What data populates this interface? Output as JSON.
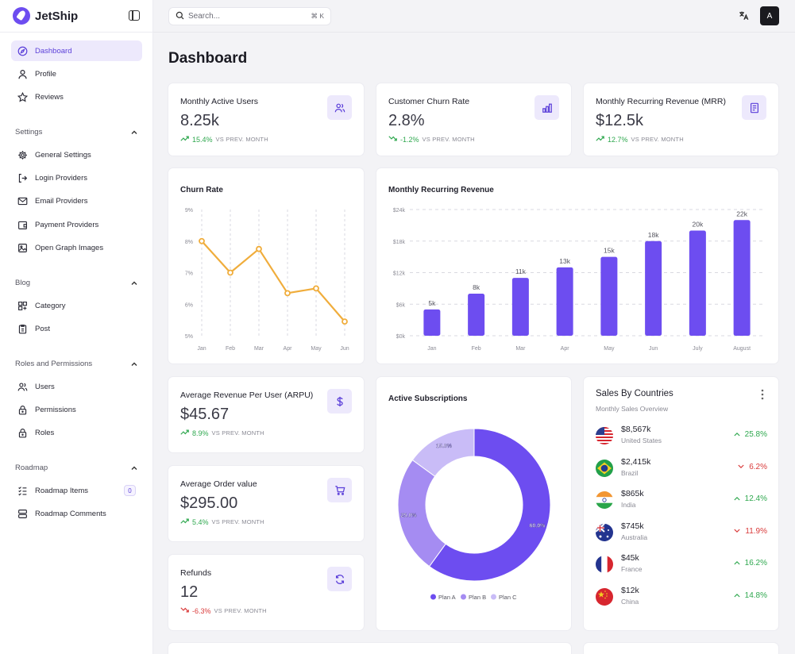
{
  "brand": {
    "name": "JetShip"
  },
  "nav": {
    "main": [
      {
        "label": "Dashboard",
        "icon": "compass-icon",
        "active": true
      },
      {
        "label": "Profile",
        "icon": "user-icon"
      },
      {
        "label": "Reviews",
        "icon": "star-icon"
      }
    ],
    "sections": [
      {
        "title": "Settings",
        "items": [
          {
            "label": "General Settings",
            "icon": "gear-icon"
          },
          {
            "label": "Login Providers",
            "icon": "login-icon"
          },
          {
            "label": "Email Providers",
            "icon": "mail-icon"
          },
          {
            "label": "Payment Providers",
            "icon": "wallet-icon"
          },
          {
            "label": "Open Graph Images",
            "icon": "image-icon"
          }
        ]
      },
      {
        "title": "Blog",
        "items": [
          {
            "label": "Category",
            "icon": "grid-icon"
          },
          {
            "label": "Post",
            "icon": "clipboard-icon"
          }
        ]
      },
      {
        "title": "Roles and Permissions",
        "items": [
          {
            "label": "Users",
            "icon": "users-icon"
          },
          {
            "label": "Permissions",
            "icon": "lock-icon"
          },
          {
            "label": "Roles",
            "icon": "lock-icon"
          }
        ]
      },
      {
        "title": "Roadmap",
        "items": [
          {
            "label": "Roadmap Items",
            "icon": "list-check-icon",
            "badge": "0"
          },
          {
            "label": "Roadmap Comments",
            "icon": "server-icon"
          }
        ]
      }
    ]
  },
  "topbar": {
    "search_placeholder": "Search...",
    "search_shortcut": "⌘ K",
    "avatar_initial": "A"
  },
  "page": {
    "title": "Dashboard"
  },
  "stats": {
    "mau": {
      "title": "Monthly Active Users",
      "value": "8.25k",
      "change": "15.4%",
      "direction": "up",
      "note": "VS PREV. MONTH",
      "icon": "users-icon"
    },
    "churn": {
      "title": "Customer Churn Rate",
      "value": "2.8%",
      "change": "-1.2%",
      "direction": "down-good",
      "note": "VS PREV. MONTH",
      "icon": "bar-chart-icon"
    },
    "mrr": {
      "title": "Monthly Recurring Revenue (MRR)",
      "value": "$12.5k",
      "change": "12.7%",
      "direction": "up",
      "note": "VS PREV. MONTH",
      "icon": "receipt-icon"
    },
    "arpu": {
      "title": "Average Revenue Per User (ARPU)",
      "value": "$45.67",
      "change": "8.9%",
      "direction": "up",
      "note": "VS PREV. MONTH",
      "icon": "dollar-icon"
    },
    "aov": {
      "title": "Average Order value",
      "value": "$295.00",
      "change": "5.4%",
      "direction": "up",
      "note": "VS PREV. MONTH",
      "icon": "cart-icon"
    },
    "refunds": {
      "title": "Refunds",
      "value": "12",
      "change": "-6.3%",
      "direction": "down",
      "note": "VS PREV. MONTH",
      "icon": "refresh-icon"
    }
  },
  "chart_data": [
    {
      "type": "line",
      "title": "Churn Rate",
      "categories": [
        "Jan",
        "Feb",
        "Mar",
        "Apr",
        "May",
        "Jun"
      ],
      "values": [
        8.0,
        7.0,
        7.75,
        6.35,
        6.5,
        5.45
      ],
      "yticks": [
        "9%",
        "8%",
        "7%",
        "6%",
        "5%"
      ],
      "ylim": [
        5,
        9
      ],
      "color": "#f0ad3c",
      "grid": "vertical dashed"
    },
    {
      "type": "bar",
      "title": "Monthly Recurring Revenue",
      "categories": [
        "Jan",
        "Feb",
        "Mar",
        "Apr",
        "May",
        "Jun",
        "July",
        "August"
      ],
      "values": [
        5,
        8,
        11,
        13,
        15,
        18,
        20,
        22
      ],
      "labels": [
        "5k",
        "8k",
        "11k",
        "13k",
        "15k",
        "18k",
        "20k",
        "22k"
      ],
      "yticks": [
        "$24k",
        "$18k",
        "$12k",
        "$6k",
        "$0k"
      ],
      "ylim": [
        0,
        24
      ],
      "color": "#6d4df0",
      "grid": "horizontal dashed"
    },
    {
      "type": "pie",
      "title": "Active Subscriptions",
      "series": [
        {
          "name": "Plan A",
          "value": 60.0,
          "label": "60.0%",
          "color": "#6d4df0"
        },
        {
          "name": "Plan B",
          "value": 25.0,
          "label": "25.0%",
          "color": "#a58cf2"
        },
        {
          "name": "Plan C",
          "value": 15.0,
          "label": "15.0%",
          "color": "#c9bcf7"
        }
      ],
      "legend": "bottom"
    }
  ],
  "countries": {
    "title": "Sales By Countries",
    "subtitle": "Monthly Sales Overview",
    "rows": [
      {
        "amount": "$8,567k",
        "country": "United States",
        "change": "25.8%",
        "direction": "up",
        "flag": "us-flag-icon"
      },
      {
        "amount": "$2,415k",
        "country": "Brazil",
        "change": "6.2%",
        "direction": "down",
        "flag": "brazil-flag-icon"
      },
      {
        "amount": "$865k",
        "country": "India",
        "change": "12.4%",
        "direction": "up",
        "flag": "india-flag-icon"
      },
      {
        "amount": "$745k",
        "country": "Australia",
        "change": "11.9%",
        "direction": "down",
        "flag": "australia-flag-icon"
      },
      {
        "amount": "$45k",
        "country": "France",
        "change": "16.2%",
        "direction": "up",
        "flag": "france-flag-icon"
      },
      {
        "amount": "$12k",
        "country": "China",
        "change": "14.8%",
        "direction": "up",
        "flag": "china-flag-icon"
      }
    ]
  },
  "colors": {
    "accent": "#6d4df0",
    "accent_soft": "#ede9fc",
    "up": "#2fa84f",
    "down": "#d93a3a",
    "line": "#f0ad3c"
  }
}
